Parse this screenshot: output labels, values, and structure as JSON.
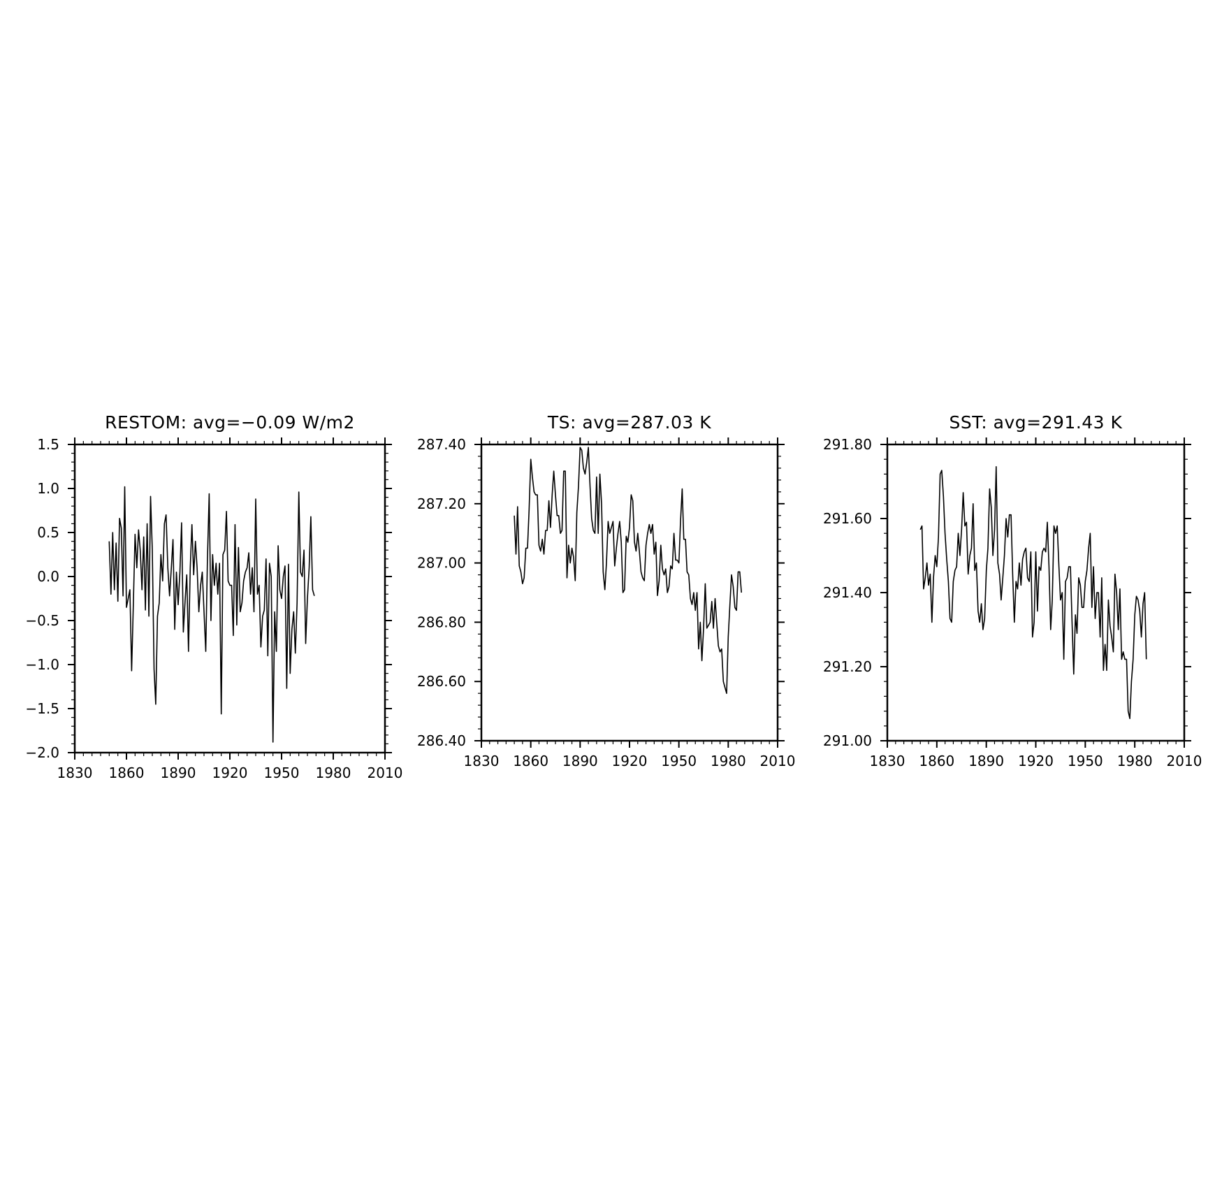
{
  "chart_data": [
    {
      "type": "line",
      "title": "RESTOM: avg=−0.09 W/m2",
      "xlabel": "",
      "ylabel": "",
      "xlim": [
        1830,
        2010
      ],
      "ylim": [
        -2.0,
        1.5
      ],
      "xticks": [
        1830,
        1860,
        1890,
        1920,
        1950,
        1980,
        2010
      ],
      "xtick_labels": [
        "1830",
        "1860",
        "1890",
        "1920",
        "1950",
        "1980",
        "2010"
      ],
      "yticks": [
        1.5,
        1.0,
        0.5,
        0.0,
        -0.5,
        -1.0,
        -1.5,
        -2.0
      ],
      "ytick_labels": [
        "1.5",
        "1.0",
        "0.5",
        "0.0",
        "−0.5",
        "−1.0",
        "−1.5",
        "−2.0"
      ],
      "grid": false,
      "x_start": 1850,
      "values": [
        0.4,
        -0.2,
        0.5,
        -0.15,
        0.38,
        -0.28,
        0.66,
        0.55,
        -0.22,
        1.02,
        -0.35,
        -0.25,
        -0.15,
        -1.07,
        -0.3,
        0.48,
        0.1,
        0.53,
        0.3,
        -0.15,
        0.45,
        -0.38,
        0.6,
        -0.45,
        0.91,
        0.3,
        -1.05,
        -1.45,
        -0.45,
        -0.3,
        0.25,
        -0.05,
        0.6,
        0.7,
        0.1,
        -0.22,
        0.08,
        0.42,
        -0.6,
        0.05,
        -0.32,
        0.05,
        0.61,
        -0.63,
        -0.28,
        0.02,
        -0.85,
        0.1,
        0.59,
        0.02,
        0.4,
        0.1,
        -0.4,
        -0.1,
        0.05,
        -0.4,
        -0.85,
        0.2,
        0.94,
        -0.5,
        0.25,
        -0.1,
        0.15,
        -0.2,
        0.15,
        -1.56,
        0.25,
        0.3,
        0.74,
        -0.05,
        -0.1,
        -0.1,
        -0.67,
        0.59,
        -0.55,
        0.33,
        -0.4,
        -0.3,
        -0.05,
        0.05,
        0.1,
        0.27,
        -0.2,
        0.1,
        -0.4,
        0.88,
        -0.2,
        -0.1,
        -0.8,
        -0.45,
        -0.38,
        0.2,
        -0.9,
        0.15,
        0.0,
        -1.88,
        -0.4,
        -0.85,
        0.35,
        -0.15,
        -0.25,
        0.0,
        0.12,
        -1.27,
        0.14,
        -1.1,
        -0.6,
        -0.4,
        -0.87,
        -0.3,
        0.96,
        0.05,
        0.0,
        0.3,
        -0.76,
        -0.25,
        0.1,
        0.68,
        -0.15,
        -0.22
      ]
    },
    {
      "type": "line",
      "title": "TS: avg=287.03 K",
      "xlabel": "",
      "ylabel": "",
      "xlim": [
        1830,
        2010
      ],
      "ylim": [
        286.4,
        287.4
      ],
      "xticks": [
        1830,
        1860,
        1890,
        1920,
        1950,
        1980,
        2010
      ],
      "xtick_labels": [
        "1830",
        "1860",
        "1890",
        "1920",
        "1950",
        "1980",
        "2010"
      ],
      "yticks": [
        287.4,
        287.2,
        287.0,
        286.8,
        286.6,
        286.4
      ],
      "ytick_labels": [
        "287.40",
        "287.20",
        "287.00",
        "286.80",
        "286.60",
        "286.40"
      ],
      "grid": false,
      "x_start": 1850,
      "values": [
        287.16,
        287.03,
        287.19,
        286.99,
        286.97,
        286.93,
        286.95,
        287.05,
        287.05,
        287.18,
        287.35,
        287.29,
        287.24,
        287.23,
        287.23,
        287.06,
        287.04,
        287.08,
        287.03,
        287.11,
        287.11,
        287.21,
        287.12,
        287.23,
        287.31,
        287.23,
        287.16,
        287.16,
        287.1,
        287.11,
        287.31,
        287.31,
        286.95,
        287.06,
        287.0,
        287.05,
        287.02,
        286.94,
        287.17,
        287.26,
        287.39,
        287.38,
        287.32,
        287.3,
        287.34,
        287.39,
        287.26,
        287.15,
        287.11,
        287.1,
        287.29,
        287.1,
        287.3,
        287.2,
        286.97,
        286.91,
        287.0,
        287.14,
        287.1,
        287.12,
        287.14,
        286.99,
        287.05,
        287.1,
        287.14,
        287.07,
        286.9,
        286.91,
        287.09,
        287.07,
        287.12,
        287.23,
        287.21,
        287.07,
        287.04,
        287.1,
        287.04,
        286.97,
        286.95,
        286.94,
        287.06,
        287.1,
        287.13,
        287.1,
        287.13,
        287.03,
        287.07,
        286.89,
        286.94,
        287.06,
        286.98,
        286.96,
        286.98,
        286.9,
        286.92,
        286.99,
        286.98,
        287.1,
        287.01,
        287.01,
        287.0,
        287.14,
        287.25,
        287.08,
        287.08,
        286.97,
        286.96,
        286.88,
        286.86,
        286.9,
        286.84,
        286.9,
        286.71,
        286.8,
        286.67,
        286.78,
        286.93,
        286.78,
        286.79,
        286.8,
        286.87,
        286.78,
        286.88,
        286.8,
        286.72,
        286.7,
        286.71,
        286.6,
        286.58,
        286.56,
        286.75,
        286.86,
        286.96,
        286.92,
        286.85,
        286.84,
        286.97,
        286.97,
        286.9
      ]
    },
    {
      "type": "line",
      "title": "SST: avg=291.43 K",
      "xlabel": "",
      "ylabel": "",
      "xlim": [
        1830,
        2010
      ],
      "ylim": [
        291.0,
        291.8
      ],
      "xticks": [
        1830,
        1860,
        1890,
        1920,
        1950,
        1980,
        2010
      ],
      "xtick_labels": [
        "1830",
        "1860",
        "1890",
        "1920",
        "1950",
        "1980",
        "2010"
      ],
      "yticks": [
        291.8,
        291.6,
        291.4,
        291.2,
        291.0
      ],
      "ytick_labels": [
        "291.80",
        "291.60",
        "291.40",
        "291.20",
        "291.00"
      ],
      "grid": false,
      "x_start": 1850,
      "values": [
        291.57,
        291.58,
        291.41,
        291.44,
        291.48,
        291.42,
        291.45,
        291.32,
        291.44,
        291.5,
        291.47,
        291.55,
        291.72,
        291.73,
        291.66,
        291.56,
        291.49,
        291.43,
        291.33,
        291.32,
        291.43,
        291.46,
        291.47,
        291.56,
        291.5,
        291.57,
        291.67,
        291.58,
        291.59,
        291.45,
        291.5,
        291.52,
        291.64,
        291.46,
        291.48,
        291.35,
        291.32,
        291.37,
        291.3,
        291.33,
        291.46,
        291.52,
        291.68,
        291.63,
        291.5,
        291.57,
        291.74,
        291.48,
        291.45,
        291.38,
        291.44,
        291.5,
        291.6,
        291.55,
        291.61,
        291.61,
        291.45,
        291.32,
        291.43,
        291.41,
        291.48,
        291.42,
        291.49,
        291.51,
        291.52,
        291.44,
        291.43,
        291.51,
        291.28,
        291.32,
        291.51,
        291.35,
        291.47,
        291.46,
        291.51,
        291.52,
        291.51,
        291.59,
        291.47,
        291.3,
        291.38,
        291.58,
        291.56,
        291.58,
        291.47,
        291.38,
        291.4,
        291.22,
        291.43,
        291.44,
        291.47,
        291.47,
        291.32,
        291.18,
        291.34,
        291.29,
        291.44,
        291.42,
        291.36,
        291.36,
        291.43,
        291.46,
        291.52,
        291.56,
        291.36,
        291.47,
        291.33,
        291.4,
        291.4,
        291.28,
        291.44,
        291.19,
        291.26,
        291.19,
        291.38,
        291.31,
        291.28,
        291.24,
        291.45,
        291.4,
        291.3,
        291.41,
        291.22,
        291.24,
        291.22,
        291.22,
        291.08,
        291.06,
        291.16,
        291.22,
        291.34,
        291.39,
        291.38,
        291.35,
        291.28,
        291.37,
        291.4,
        291.22
      ]
    }
  ]
}
